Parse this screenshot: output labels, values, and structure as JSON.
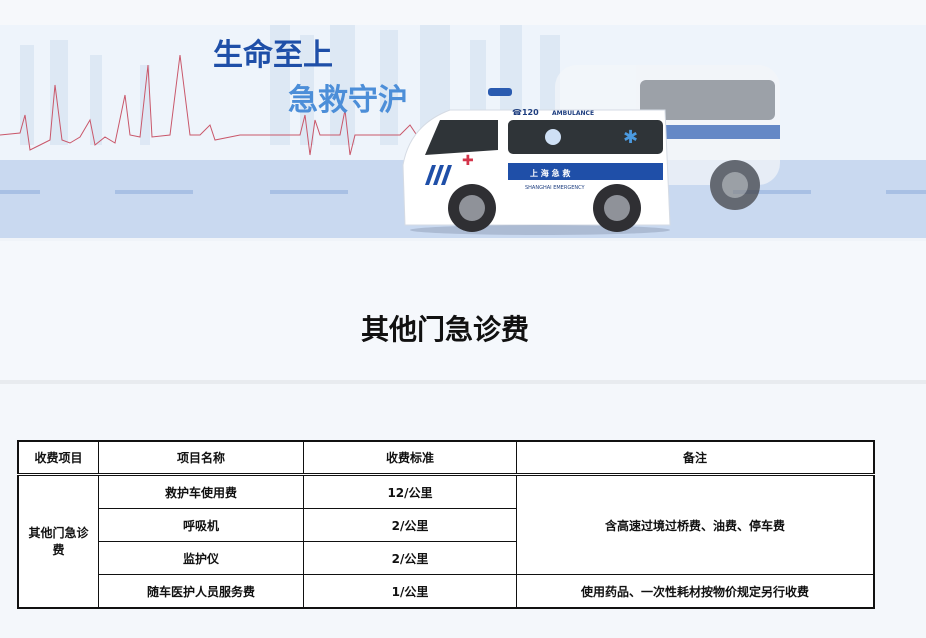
{
  "banner": {
    "slogan_line1": "生命至上",
    "slogan_line2": "急救守沪",
    "ambulance_phone": "☎120",
    "ambulance_label": "AMBULANCE",
    "ambulance_cn": "上 海 急 救",
    "ambulance_en": "SHANGHAI EMERGENCY"
  },
  "page_title": "其他门急诊费",
  "table": {
    "headers": [
      "收费项目",
      "项目名称",
      "收费标准",
      "备注"
    ],
    "category": "其他门急诊费",
    "rows": [
      {
        "name": "救护车使用费",
        "standard": "12/公里"
      },
      {
        "name": "呼吸机",
        "standard": "2/公里"
      },
      {
        "name": "监护仪",
        "standard": "2/公里"
      },
      {
        "name": "随车医护人员服务费",
        "standard": "1/公里"
      }
    ],
    "note_group": "含高速过境过桥费、油费、停车费",
    "note_last": "使用药品、一次性耗材按物价规定另行收费"
  },
  "colors": {
    "brand_blue": "#1f4fa8",
    "road": "#c9d9f0",
    "sky": "#eef4fb"
  }
}
